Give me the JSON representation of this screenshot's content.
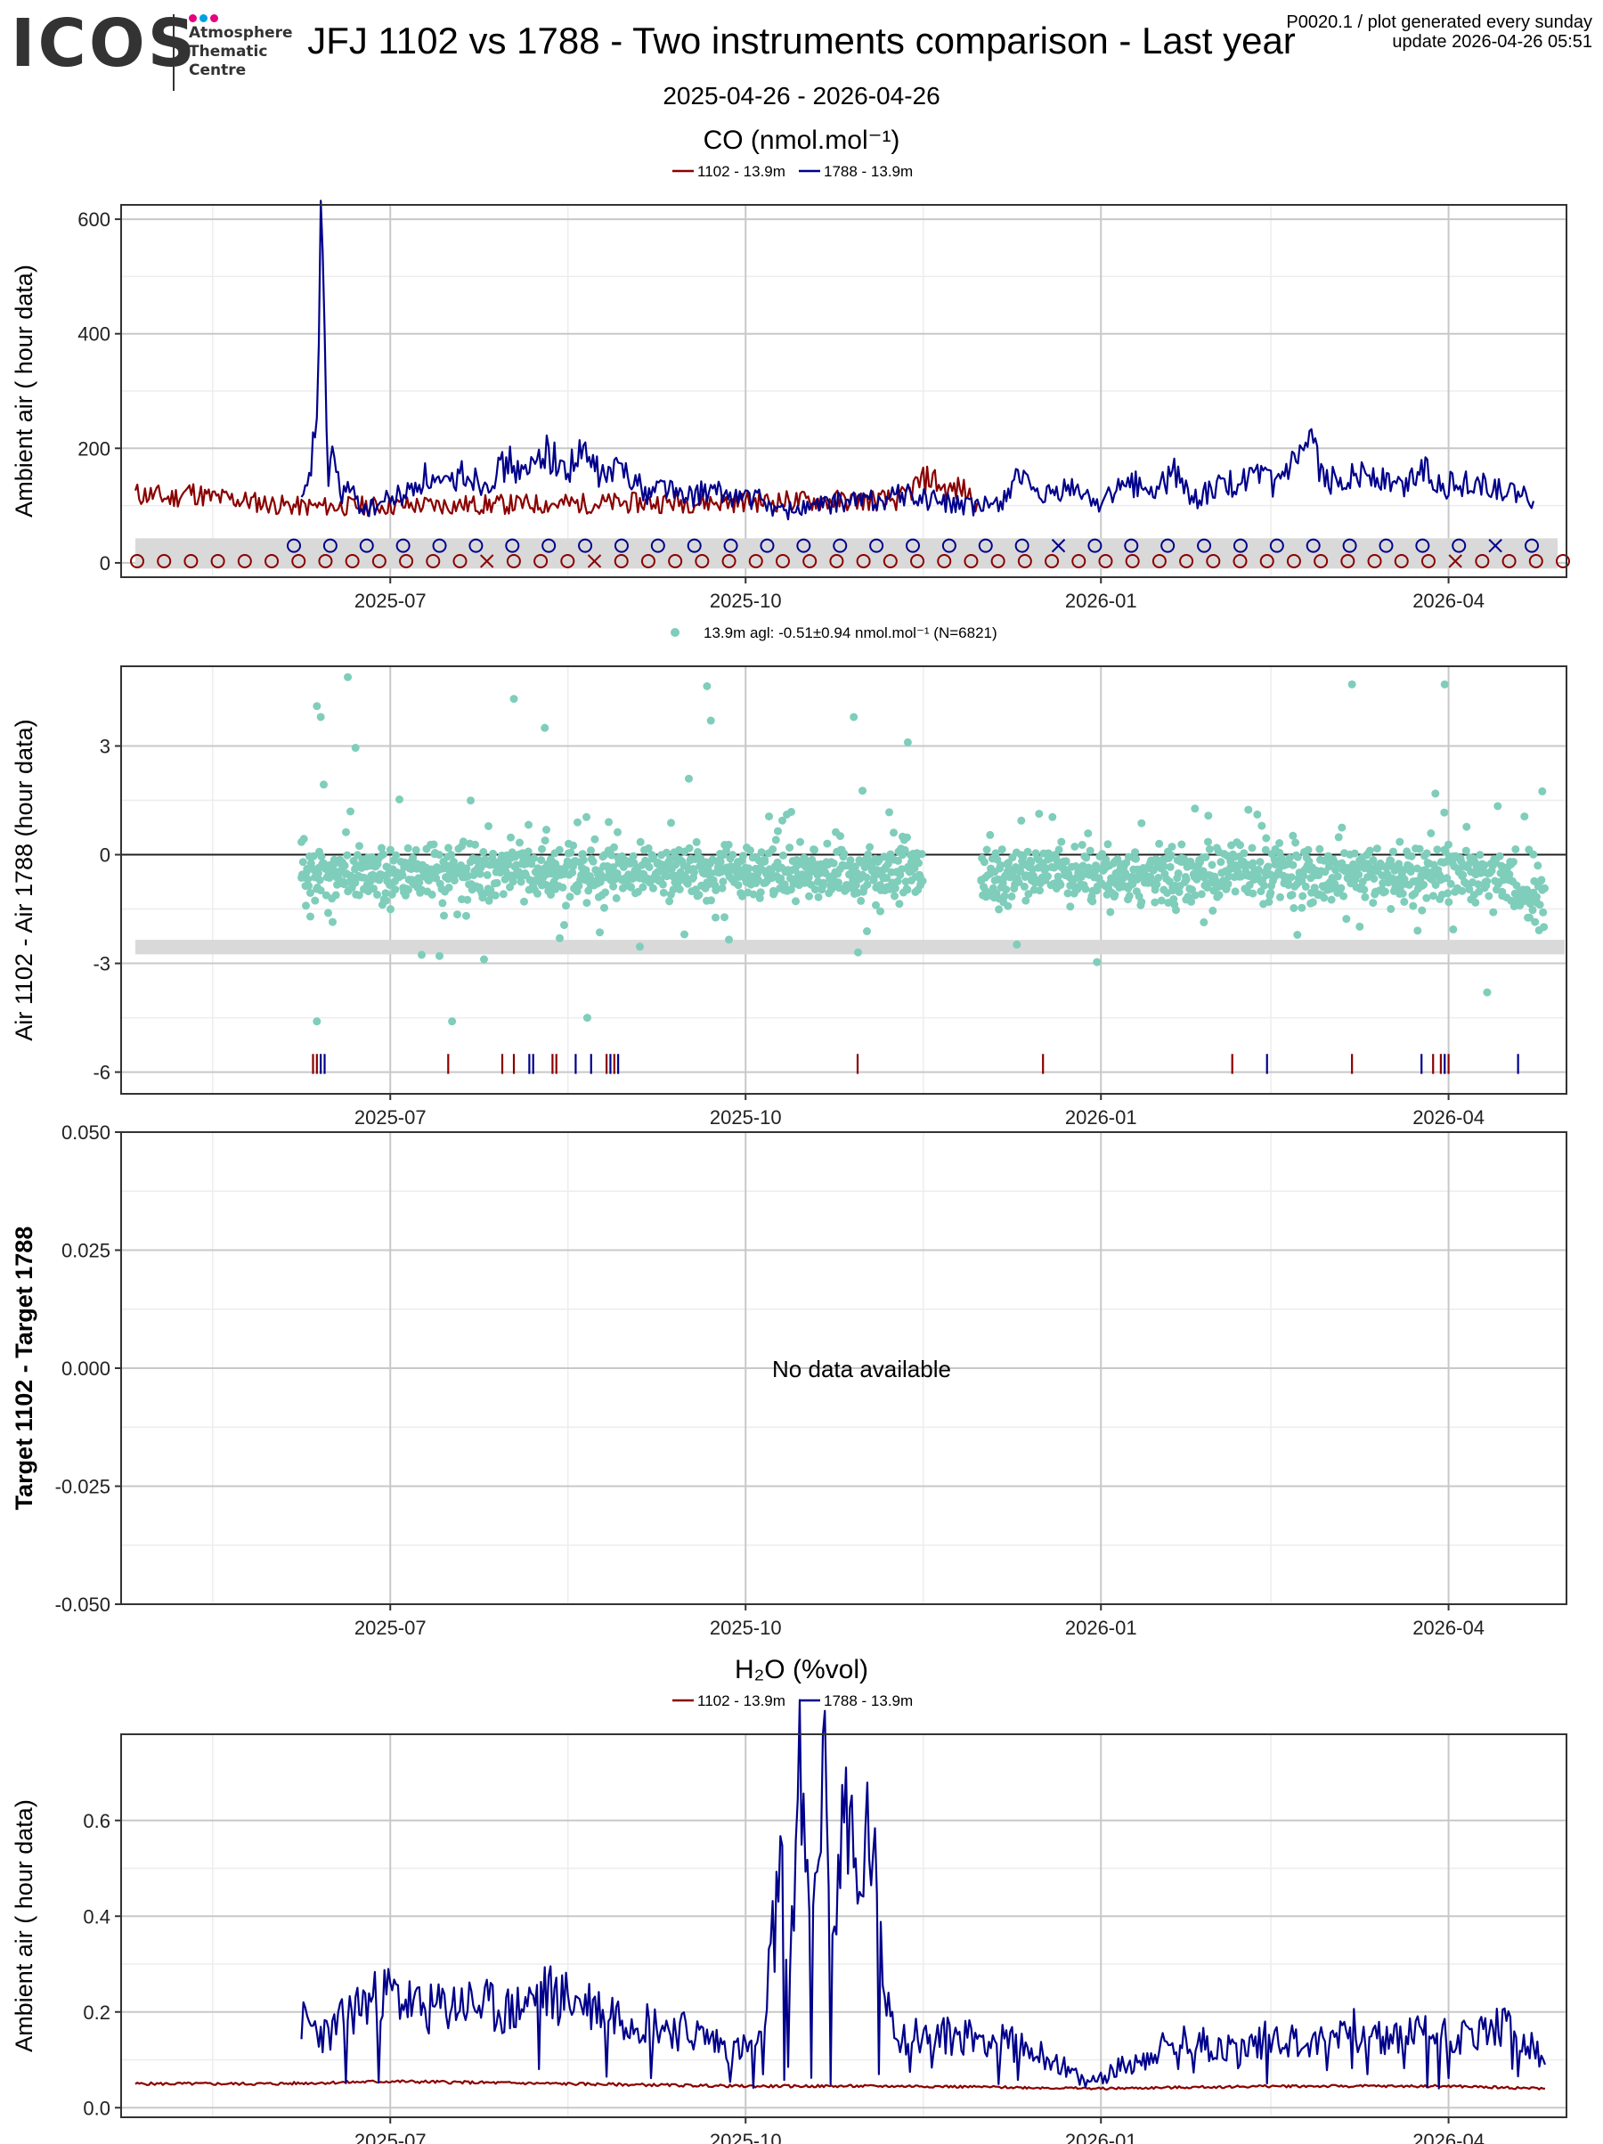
{
  "header": {
    "logo": "ICOS",
    "logo_sub": [
      "Atmosphere",
      "Thematic",
      "Centre"
    ],
    "title": "JFJ 1102 vs 1788 - Two instruments comparison - Last year",
    "date_range": "2025-04-26 - 2026-04-26",
    "meta_line1": "P0020.1 / plot generated every sunday",
    "meta_line2": "update  2026-04-26 05:51"
  },
  "colors": {
    "series_1102": "#8b0000",
    "series_1788": "#00008b",
    "diff_points": "#7fcdbb",
    "band": "#d9d9d9",
    "grid_major": "#c8c8c8",
    "grid_minor": "#ededed",
    "logo_dots": [
      "#e6007e",
      "#00a0e3",
      "#e6007e"
    ]
  },
  "x_axis": {
    "range": [
      "2025-04-26",
      "2026-04-26"
    ],
    "major_ticks": [
      "2025-07-01",
      "2025-10-01",
      "2026-01-01",
      "2026-04-01"
    ],
    "tick_labels": [
      "2025-07",
      "2025-10",
      "2026-01",
      "2026-04"
    ],
    "minor_ticks": [
      "2025-05-16",
      "2025-08-16",
      "2025-11-16",
      "2026-02-14"
    ]
  },
  "chart_data": [
    {
      "type": "line",
      "title": "CO (nmol.mol⁻¹)",
      "ylabel": "Ambient air ( hour data)",
      "ylim": [
        -25,
        625
      ],
      "y_ticks": [
        0,
        200,
        400,
        600
      ],
      "series": [
        {
          "name": "1102 - 13.9m",
          "color": "#8b0000",
          "x": [
            "2025-04-26",
            "2025-05-01",
            "2025-05-05",
            "2025-05-10",
            "2025-05-15",
            "2025-05-20",
            "2025-05-25",
            "2025-06-01",
            "2025-06-08",
            "2025-11-10",
            "2025-11-14",
            "2025-11-18",
            "2025-11-22",
            "2025-11-26",
            "2025-11-30"
          ],
          "y": [
            120,
            118,
            112,
            125,
            114,
            112,
            108,
            102,
            98,
            110,
            135,
            150,
            125,
            130,
            105
          ]
        },
        {
          "name": "1788 - 13.9m",
          "color": "#00008b",
          "x": [
            "2025-06-08",
            "2025-06-10",
            "2025-06-12",
            "2025-06-13",
            "2025-06-14",
            "2025-06-15",
            "2025-06-16",
            "2025-06-18",
            "2025-06-20",
            "2025-06-23",
            "2025-06-26",
            "2025-06-30",
            "2025-07-05",
            "2025-07-10",
            "2025-07-15",
            "2025-07-20",
            "2025-07-25",
            "2025-08-01",
            "2025-08-05",
            "2025-08-10",
            "2025-08-15",
            "2025-08-20",
            "2025-08-25",
            "2025-08-31",
            "2025-09-05",
            "2025-09-10",
            "2025-09-15",
            "2025-09-20",
            "2025-09-25",
            "2025-09-30",
            "2025-10-05",
            "2025-10-10",
            "2025-10-15",
            "2025-10-20",
            "2025-10-25",
            "2025-10-31",
            "2025-11-05",
            "2025-11-10",
            "2025-11-30",
            "2025-12-05",
            "2025-12-08",
            "2025-12-10",
            "2025-12-15",
            "2025-12-20",
            "2025-12-25",
            "2025-12-31",
            "2026-01-05",
            "2026-01-10",
            "2026-01-15",
            "2026-01-20",
            "2026-01-25",
            "2026-01-31",
            "2026-02-05",
            "2026-02-10",
            "2026-02-15",
            "2026-02-20",
            "2026-02-25",
            "2026-02-28",
            "2026-03-05",
            "2026-03-10",
            "2026-03-15",
            "2026-03-20",
            "2026-03-25",
            "2026-03-31",
            "2026-04-05",
            "2026-04-10",
            "2026-04-15",
            "2026-04-20",
            "2026-04-23"
          ],
          "y": [
            100,
            140,
            260,
            590,
            350,
            150,
            200,
            120,
            130,
            100,
            95,
            110,
            120,
            150,
            130,
            160,
            140,
            175,
            150,
            200,
            160,
            190,
            150,
            170,
            120,
            140,
            110,
            125,
            120,
            115,
            110,
            90,
            95,
            100,
            105,
            110,
            110,
            120,
            95,
            105,
            120,
            165,
            110,
            120,
            130,
            105,
            125,
            140,
            120,
            160,
            110,
            130,
            140,
            150,
            135,
            170,
            205,
            140,
            150,
            160,
            145,
            130,
            170,
            135,
            140,
            135,
            125,
            115,
            108
          ]
        }
      ],
      "status_row_1788": {
        "markers": [
          "o",
          "o",
          "o",
          "o",
          "o",
          "o",
          "o",
          "o",
          "o",
          "o",
          "o",
          "o",
          "o",
          "o",
          "o",
          "o",
          "o",
          "o",
          "o",
          "o",
          "o",
          "x",
          "o",
          "o",
          "o",
          "o",
          "o",
          "o",
          "o",
          "o",
          "o",
          "o",
          "o",
          "x",
          "o"
        ]
      },
      "status_row_1102": {
        "markers": [
          "o",
          "o",
          "o",
          "o",
          "o",
          "o",
          "o",
          "o",
          "o",
          "o",
          "o",
          "o",
          "o",
          "x",
          "o",
          "o",
          "o",
          "x",
          "o",
          "o",
          "o",
          "o",
          "o",
          "o",
          "o",
          "o",
          "o",
          "o",
          "o",
          "o",
          "o",
          "o",
          "o",
          "o",
          "o",
          "o",
          "o",
          "o",
          "o",
          "o",
          "o",
          "o",
          "o",
          "o",
          "o",
          "o",
          "o",
          "o",
          "o",
          "x",
          "o",
          "o",
          "o",
          "o"
        ]
      }
    },
    {
      "type": "scatter",
      "legend": "13.9m agl: -0.51±0.94 nmol.mol⁻¹",
      "legend_bold": "13.9m agl:",
      "legend_n": "(N=6821)",
      "ylabel": "Air 1102 - Air 1788 (hour data)",
      "ylim": [
        -6.6,
        5.2
      ],
      "y_ticks": [
        -6,
        -3,
        0,
        3
      ],
      "mean": -0.51,
      "sd": 0.94,
      "n": 6821,
      "data_ranges": [
        [
          "2025-06-08",
          "2025-11-16"
        ],
        [
          "2025-12-01",
          "2026-04-26"
        ]
      ],
      "selected_points": [
        {
          "x": "2025-06-12",
          "y": 4.1
        },
        {
          "x": "2025-06-13",
          "y": 3.8
        },
        {
          "x": "2025-06-20",
          "y": 4.9
        },
        {
          "x": "2025-06-22",
          "y": 2.95
        },
        {
          "x": "2025-08-02",
          "y": 4.3
        },
        {
          "x": "2025-08-10",
          "y": 3.5
        },
        {
          "x": "2025-09-21",
          "y": 4.65
        },
        {
          "x": "2025-09-22",
          "y": 3.7
        },
        {
          "x": "2025-10-29",
          "y": 3.8
        },
        {
          "x": "2025-11-12",
          "y": 3.1
        },
        {
          "x": "2025-06-12",
          "y": -4.6
        },
        {
          "x": "2025-07-17",
          "y": -4.6
        },
        {
          "x": "2025-08-21",
          "y": -4.5
        },
        {
          "x": "2026-03-07",
          "y": 4.7
        },
        {
          "x": "2026-03-31",
          "y": 4.7
        },
        {
          "x": "2026-04-11",
          "y": -3.8
        }
      ],
      "flag_ticks_1102": [
        "2025-06-11",
        "2025-06-12",
        "2025-07-16",
        "2025-07-30",
        "2025-08-02",
        "2025-08-12",
        "2025-08-13",
        "2025-08-26",
        "2025-08-28",
        "2025-10-30",
        "2025-12-17",
        "2026-02-04",
        "2026-03-07",
        "2026-03-28",
        "2026-03-30",
        "2026-04-01"
      ],
      "flag_ticks_1788": [
        "2025-06-13",
        "2025-06-14",
        "2025-08-06",
        "2025-08-07",
        "2025-08-18",
        "2025-08-22",
        "2025-08-27",
        "2025-08-29",
        "2026-02-13",
        "2026-03-25",
        "2026-03-31",
        "2026-04-19"
      ]
    },
    {
      "type": "scatter",
      "ylabel": "Target 1102 - Target 1788",
      "ylim": [
        -0.05,
        0.05
      ],
      "y_ticks": [
        "-0.050",
        "-0.025",
        "0.000",
        "0.025",
        "0.050"
      ],
      "message": "No data available"
    },
    {
      "type": "line",
      "title": "H₂O (%vol)",
      "ylabel": "Ambient air ( hour data)",
      "ylim": [
        -0.02,
        0.78
      ],
      "y_ticks": [
        0.0,
        0.2,
        0.4,
        0.6
      ],
      "series": [
        {
          "name": "1102 - 13.9m",
          "color": "#8b0000",
          "x": [
            "2025-04-26",
            "2025-06-01",
            "2025-07-01",
            "2025-08-15",
            "2025-10-01",
            "2025-11-15",
            "2026-01-01",
            "2026-02-15",
            "2026-04-01",
            "2026-04-26"
          ],
          "y": [
            0.05,
            0.05,
            0.055,
            0.05,
            0.045,
            0.045,
            0.04,
            0.045,
            0.045,
            0.04
          ]
        },
        {
          "name": "1788 - 13.9m",
          "color": "#00008b",
          "x": [
            "2025-06-08",
            "2025-06-15",
            "2025-06-22",
            "2025-07-01",
            "2025-07-10",
            "2025-07-20",
            "2025-08-01",
            "2025-08-10",
            "2025-08-20",
            "2025-09-01",
            "2025-09-10",
            "2025-09-20",
            "2025-09-28",
            "2025-10-05",
            "2025-10-10",
            "2025-10-12",
            "2025-10-15",
            "2025-10-18",
            "2025-10-21",
            "2025-10-24",
            "2025-10-27",
            "2025-10-30",
            "2025-11-02",
            "2025-11-06",
            "2025-11-10",
            "2025-12-01",
            "2025-12-10",
            "2025-12-20",
            "2025-12-28",
            "2026-01-05",
            "2026-01-15",
            "2026-01-25",
            "2026-02-05",
            "2026-02-15",
            "2026-02-25",
            "2026-03-05",
            "2026-03-15",
            "2026-03-25",
            "2026-04-05",
            "2026-04-15",
            "2026-04-22",
            "2026-04-26"
          ],
          "y": [
            0.18,
            0.15,
            0.21,
            0.24,
            0.2,
            0.22,
            0.2,
            0.24,
            0.22,
            0.19,
            0.17,
            0.15,
            0.12,
            0.13,
            0.5,
            0.25,
            0.68,
            0.3,
            0.72,
            0.35,
            0.7,
            0.4,
            0.6,
            0.25,
            0.15,
            0.15,
            0.13,
            0.1,
            0.05,
            0.08,
            0.12,
            0.14,
            0.12,
            0.15,
            0.13,
            0.17,
            0.14,
            0.16,
            0.15,
            0.17,
            0.13,
            0.09
          ]
        }
      ]
    }
  ]
}
